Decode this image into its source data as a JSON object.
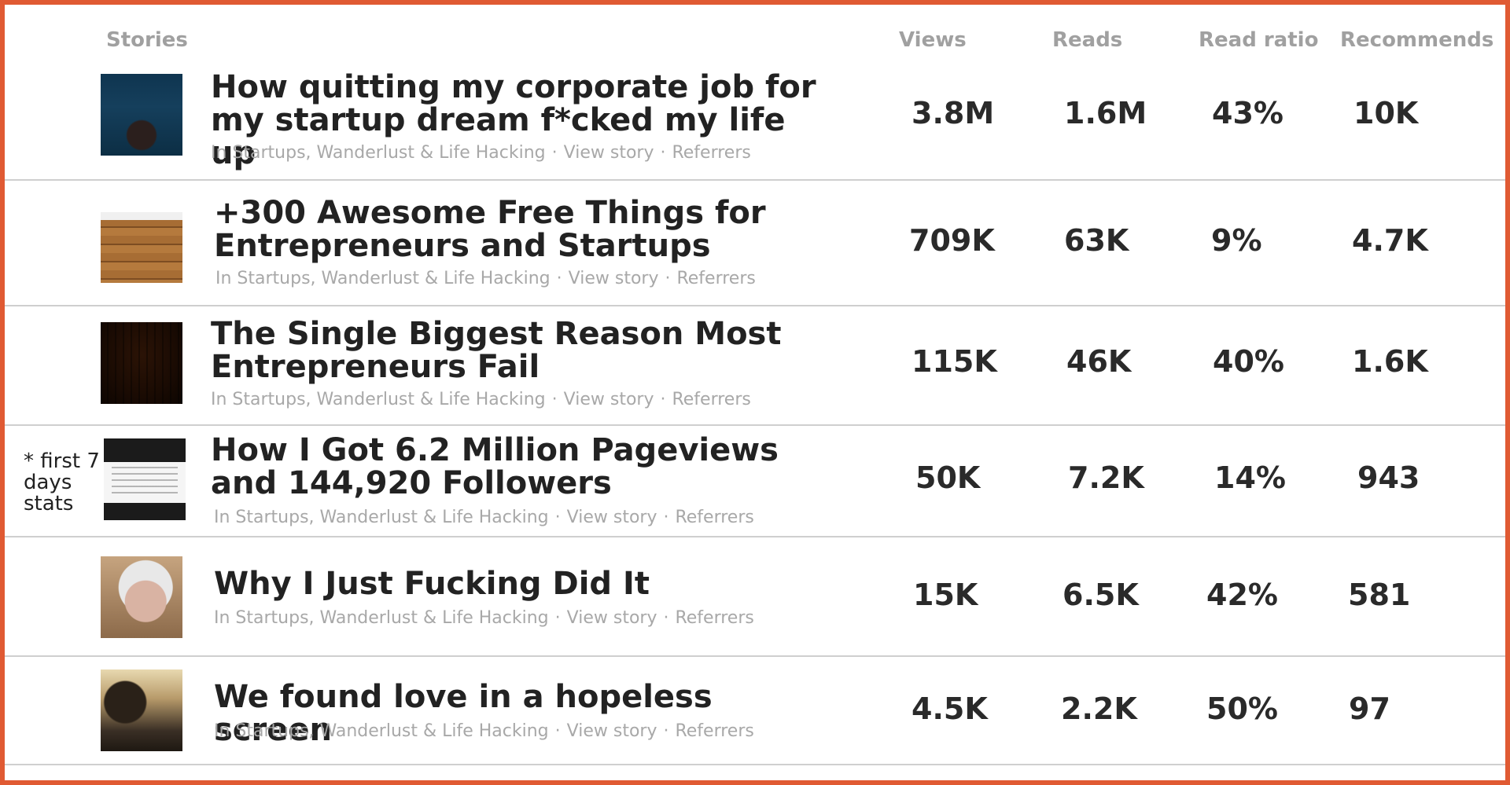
{
  "header": {
    "stories": "Stories",
    "views": "Views",
    "reads": "Reads",
    "read_ratio": "Read ratio",
    "recommends": "Recommends"
  },
  "meta_labels": {
    "publication": "In Startups, Wanderlust & Life Hacking",
    "separator": "·",
    "view_story": "View story",
    "referrers": "Referrers"
  },
  "note": "* first 7 days stats",
  "stories": [
    {
      "title": "How quitting my corporate job for my startup dream f*cked my life up",
      "views": "3.8M",
      "reads": "1.6M",
      "read_ratio": "43%",
      "recommends": "10K",
      "thumb": "underwater-swimmer-image"
    },
    {
      "title": "+300 Awesome Free Things for Entrepreneurs and Startups",
      "views": "709K",
      "reads": "63K",
      "read_ratio": "9%",
      "recommends": "4.7K",
      "thumb": "wooden-desk-laptop-image"
    },
    {
      "title": "The Single Biggest Reason Most Entrepreneurs Fail",
      "views": "115K",
      "reads": "46K",
      "read_ratio": "40%",
      "recommends": "1.6K",
      "thumb": "wood-plank-room-image"
    },
    {
      "title": "How I Got 6.2 Million Pageviews and 144,920 Followers",
      "views": "50K",
      "reads": "7.2K",
      "read_ratio": "14%",
      "recommends": "943",
      "thumb": "stats-dashboard-image"
    },
    {
      "title": "Why I Just Fucking Did It",
      "views": "15K",
      "reads": "6.5K",
      "read_ratio": "42%",
      "recommends": "581",
      "thumb": "grimacing-woman-image"
    },
    {
      "title": "We found love in a hopeless screen",
      "views": "4.5K",
      "reads": "2.2K",
      "read_ratio": "50%",
      "recommends": "97",
      "thumb": "sunset-couple-image"
    }
  ]
}
